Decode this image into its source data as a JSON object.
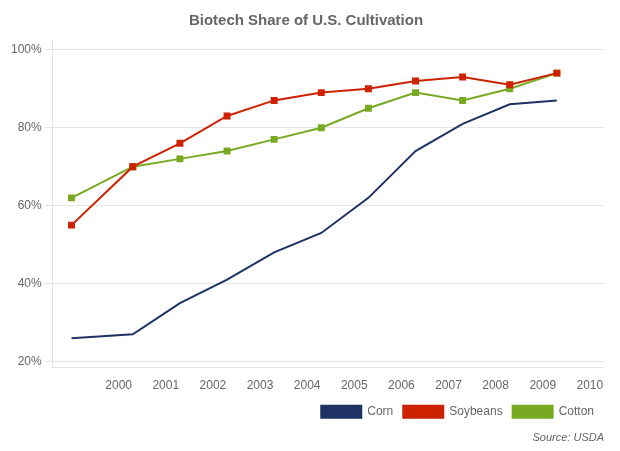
{
  "chart_data": {
    "type": "line",
    "title": "Biotech Share of U.S. Cultivation",
    "annotation": "Source: USDA",
    "x": [
      1999,
      2000.3,
      2001.3,
      2002.3,
      2003.3,
      2004.3,
      2005.3,
      2006.3,
      2007.3,
      2008.3,
      2009.3
    ],
    "series": [
      {
        "name": "Corn",
        "color": "#1e3264",
        "marker": "none",
        "values": [
          0.26,
          0.27,
          0.35,
          0.41,
          0.48,
          0.53,
          0.62,
          0.74,
          0.81,
          0.86,
          0.87
        ]
      },
      {
        "name": "Soybeans",
        "color": "#cc2200",
        "marker": "square",
        "values": [
          0.55,
          0.7,
          0.76,
          0.83,
          0.87,
          0.89,
          0.9,
          0.92,
          0.93,
          0.91,
          0.94
        ]
      },
      {
        "name": "Cotton",
        "color": "#77aa22",
        "marker": "square",
        "values": [
          0.62,
          0.7,
          0.72,
          0.74,
          0.77,
          0.8,
          0.85,
          0.89,
          0.87,
          0.9,
          0.94
        ]
      }
    ],
    "xlim": [
      1998.6,
      2010.3
    ],
    "xticks": [
      2000,
      2001,
      2002,
      2003,
      2004,
      2005,
      2006,
      2007,
      2008,
      2009,
      2010
    ],
    "ylim": [
      0.185,
      1.025
    ],
    "yticks": [
      {
        "value": 0.2,
        "label": "20%"
      },
      {
        "value": 0.4,
        "label": "40%"
      },
      {
        "value": 0.6,
        "label": "60%"
      },
      {
        "value": 0.8,
        "label": "80%"
      },
      {
        "value": 1.0,
        "label": "100%"
      }
    ],
    "grid": "y",
    "legend": "lower right"
  }
}
